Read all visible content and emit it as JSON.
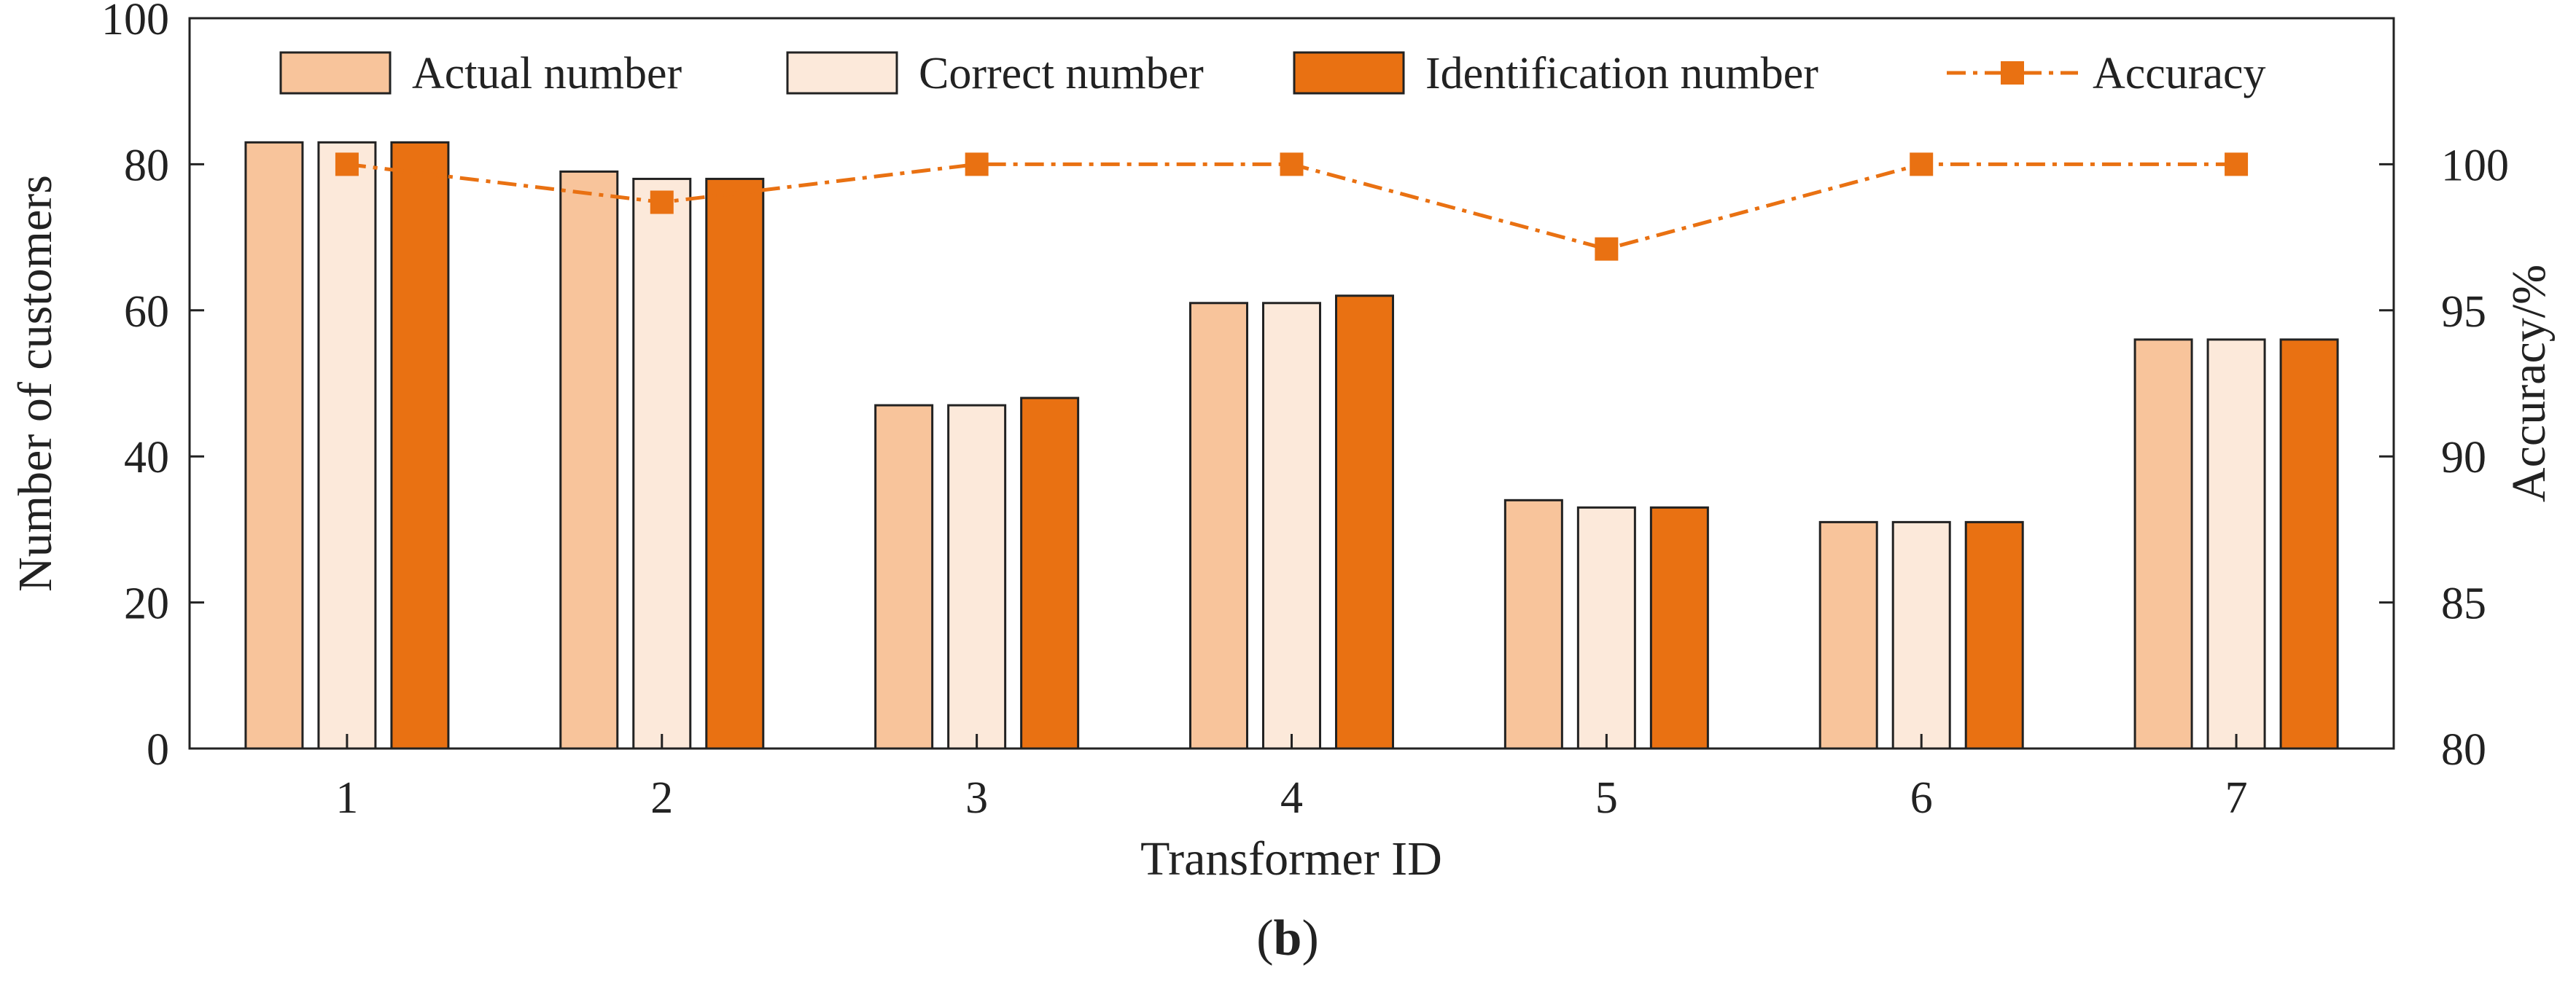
{
  "chart_data": {
    "type": "bar",
    "categories": [
      "1",
      "2",
      "3",
      "4",
      "5",
      "6",
      "7"
    ],
    "series": [
      {
        "name": "Actual number",
        "values": [
          83,
          79,
          47,
          61,
          34,
          31,
          56
        ],
        "color": "#f8c49b"
      },
      {
        "name": "Correct number",
        "values": [
          83,
          78,
          47,
          61,
          33,
          31,
          56
        ],
        "color": "#fce9da"
      },
      {
        "name": "Identification number",
        "values": [
          83,
          78,
          48,
          62,
          33,
          31,
          56
        ],
        "color": "#e97112"
      }
    ],
    "line_series": {
      "name": "Accuracy",
      "values": [
        100,
        98.7,
        100,
        100,
        97.1,
        100,
        100
      ],
      "color": "#e97112",
      "axis": "right"
    },
    "xlabel": "Transformer ID",
    "ylabel": "Number of customers",
    "ylabel_right": "Accuracy/%",
    "ylim": [
      0,
      100
    ],
    "ylim_right": [
      80,
      105
    ],
    "yticks": [
      "0",
      "20",
      "40",
      "60",
      "80",
      "100"
    ],
    "yticks_right": [
      "80",
      "85",
      "90",
      "95",
      "100"
    ],
    "grid": false,
    "legend_placement": "top"
  },
  "caption": {
    "open": "(",
    "letter": "b",
    "close": ")"
  }
}
